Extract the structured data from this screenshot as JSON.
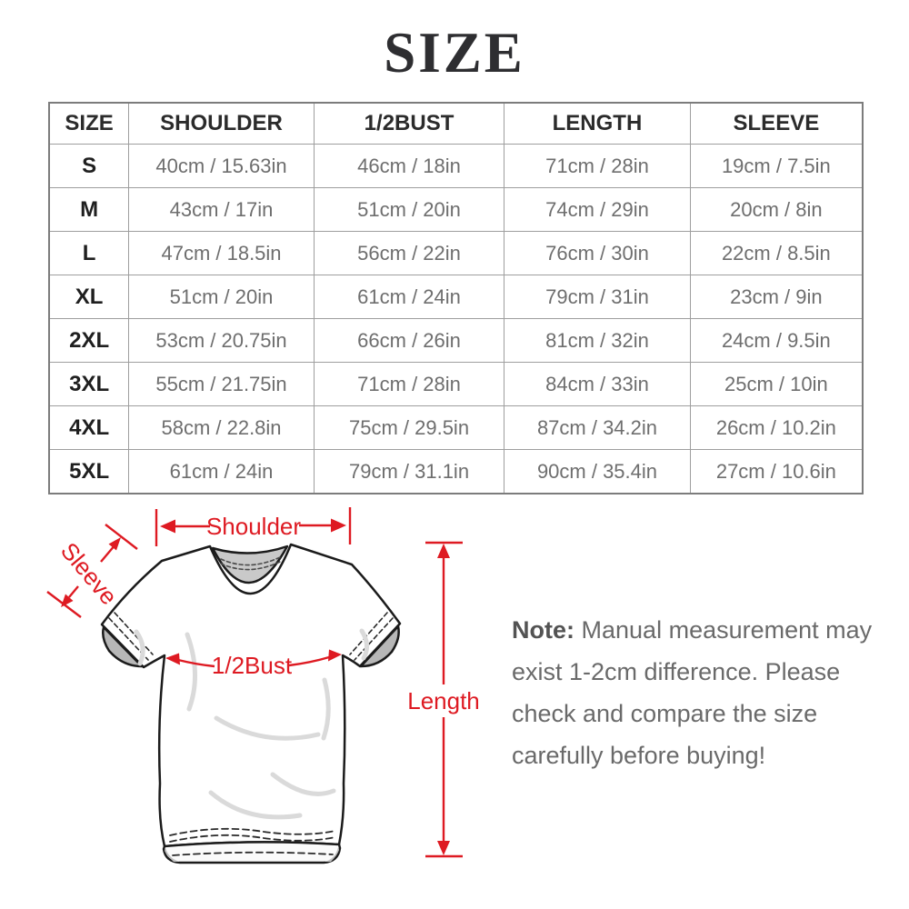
{
  "title": "SIZE",
  "table": {
    "columns": [
      "SIZE",
      "SHOULDER",
      "1/2BUST",
      "LENGTH",
      "SLEEVE"
    ],
    "rows": [
      [
        "S",
        "40cm / 15.63in",
        "46cm / 18in",
        "71cm / 28in",
        "19cm / 7.5in"
      ],
      [
        "M",
        "43cm / 17in",
        "51cm / 20in",
        "74cm / 29in",
        "20cm / 8in"
      ],
      [
        "L",
        "47cm / 18.5in",
        "56cm / 22in",
        "76cm / 30in",
        "22cm / 8.5in"
      ],
      [
        "XL",
        "51cm / 20in",
        "61cm / 24in",
        "79cm / 31in",
        "23cm / 9in"
      ],
      [
        "2XL",
        "53cm / 20.75in",
        "66cm / 26in",
        "81cm / 32in",
        "24cm / 9.5in"
      ],
      [
        "3XL",
        "55cm / 21.75in",
        "71cm / 28in",
        "84cm / 33in",
        "25cm / 10in"
      ],
      [
        "4XL",
        "58cm / 22.8in",
        "75cm / 29.5in",
        "87cm / 34.2in",
        "26cm / 10.2in"
      ],
      [
        "5XL",
        "61cm / 24in",
        "79cm / 31.1in",
        "90cm / 35.4in",
        "27cm / 10.6in"
      ]
    ]
  },
  "diagram": {
    "labels": {
      "shoulder": "Shoulder",
      "sleeve": "Sleeve",
      "bust": "1/2Bust",
      "length": "Length"
    },
    "accent_color": "#de1a22"
  },
  "note": {
    "label": "Note:",
    "text": "Manual measurement may exist 1-2cm difference. Please check and compare the size carefully before buying!"
  },
  "colors": {
    "accent_red": "#de1a22",
    "table_value_gray": "#6e6e6e",
    "note_gray": "#6a6a6a",
    "heading_dark": "#2b2b2b"
  }
}
